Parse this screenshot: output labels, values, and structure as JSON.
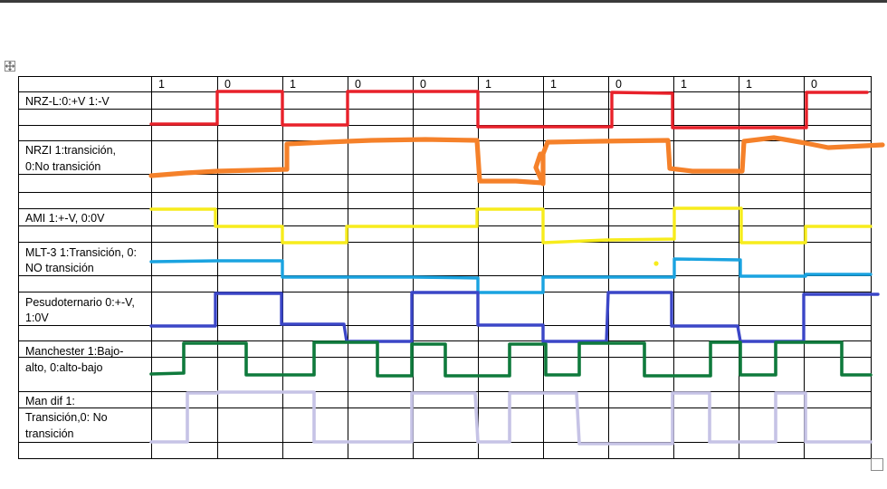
{
  "bits": [
    "1",
    "0",
    "1",
    "0",
    "0",
    "1",
    "1",
    "0",
    "1",
    "1",
    "0"
  ],
  "rows": [
    {
      "key": "nrzl",
      "lines": [
        "NRZ-L:0:+V 1:-V"
      ],
      "color": "#e8212a"
    },
    {
      "key": "nrzi",
      "lines": [
        "NRZI 1:transición,",
        "0:No transición"
      ],
      "color": "#f5812a"
    },
    {
      "key": "ami",
      "lines": [
        "AMI 1:+-V, 0:0V"
      ],
      "color": "#f7ec1c"
    },
    {
      "key": "mlt3",
      "lines": [
        "MLT-3 1:Transición, 0:",
        "NO transición"
      ],
      "color": "#1aa3e0"
    },
    {
      "key": "pseudo",
      "lines": [
        "Pesudoternario 0:+-V,",
        "1:0V"
      ],
      "color": "#3b46c7"
    },
    {
      "key": "manchester",
      "lines": [
        "Manchester 1:Bajo-",
        "alto, 0:alto-bajo"
      ],
      "color": "#0f7a3c"
    },
    {
      "key": "mandif",
      "lines": [
        "Man dif 1:",
        "Transición,0: No",
        "transición"
      ],
      "color": "#c6c3e6"
    }
  ],
  "colors": {
    "grid": "#000000"
  }
}
